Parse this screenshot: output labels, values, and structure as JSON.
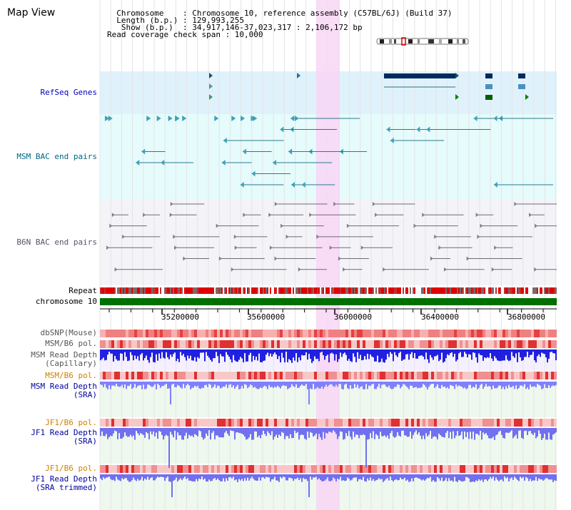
{
  "header": {
    "title": "Map View",
    "info_lines": [
      "  Chromosome    : Chromosome 10, reference assembly (C57BL/6J) (Build 37)",
      "  Length (b.p.) : 129,993,255",
      "   Show (b.p.)  : 34,917,146-37,023,317 : 2,106,172 bp",
      "Read coverage check span : 10,000"
    ]
  },
  "tracks": {
    "refseq": "RefSeq Genes",
    "msm_bac": "MSM BAC end pairs",
    "b6n_bac": "B6N BAC end pairs",
    "repeat": "Repeat",
    "chromosome": "chromosome 10",
    "dbsnp": "dbSNP(Mouse)",
    "msm_b6_pol_1": "MSM/B6 pol.",
    "msm_depth_cap": "MSM Read Depth\n(Capillary)",
    "msm_b6_pol_2": "MSM/B6 pol.",
    "msm_depth_sra": "MSM Read Depth\n(SRA)",
    "jf1_b6_pol_1": "JF1/B6 pol.",
    "jf1_depth_sra": "JF1 Read Depth\n(SRA)",
    "jf1_b6_pol_2": "JF1/B6 pol.",
    "jf1_depth_trim": "JF1 Read Depth\n(SRA trimmed)"
  },
  "axis": {
    "ticks": [
      "35200000",
      "35600000",
      "36000000",
      "36400000",
      "36800000"
    ]
  },
  "colors": {
    "refseq_bg": "#dff2fb",
    "msm_bg": "#e6fbfb",
    "b6n_bg": "#f4f4f8",
    "highlight": "#f8d6f4",
    "chrom_green": "#007000",
    "refseq_label": "#0000c0",
    "msm_label": "#006680",
    "b6n_label": "#555566",
    "orange_label": "#d08000",
    "blue_label": "#0000a0"
  }
}
